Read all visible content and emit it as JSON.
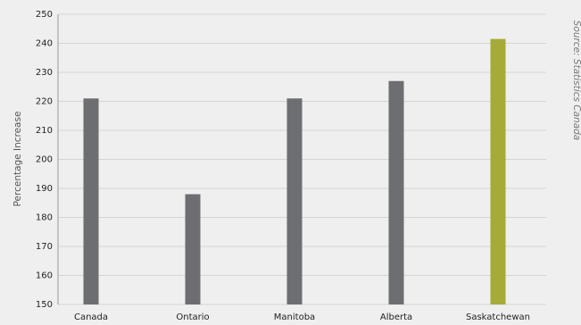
{
  "chart_data": {
    "type": "bar",
    "y_label": "Percentage Increase",
    "source": "Source: Statistics Canada",
    "categories": [
      "Canada",
      "Ontario",
      "Manitoba",
      "Alberta",
      "Saskatchewan"
    ],
    "values": [
      221,
      188,
      221,
      227,
      241.5
    ],
    "colors": [
      "#6d6e71",
      "#6d6e71",
      "#6d6e71",
      "#6d6e71",
      "#a6ab38"
    ],
    "ylim": [
      150,
      250
    ],
    "yticks": [
      150,
      160,
      170,
      180,
      190,
      200,
      210,
      220,
      230,
      240,
      250
    ],
    "grid": true
  }
}
